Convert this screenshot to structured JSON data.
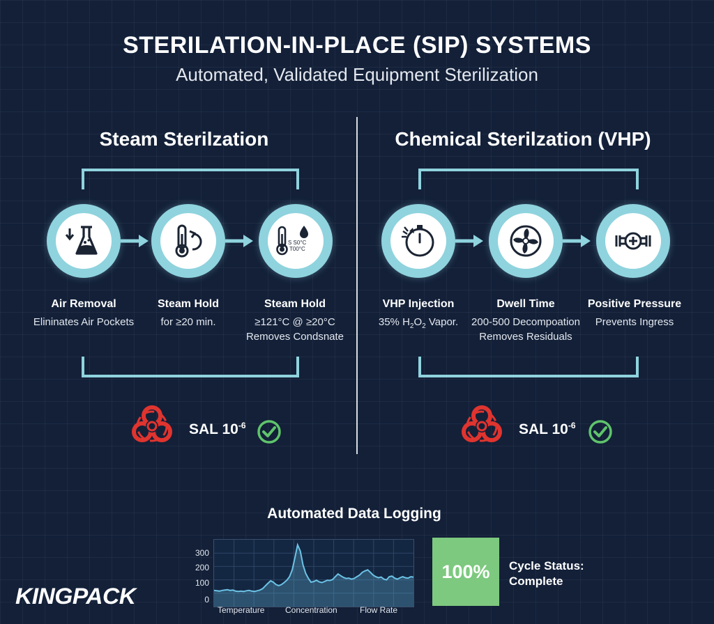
{
  "header": {
    "title": "STERILATION-IN-PLACE (SIP) SYSTEMS",
    "subtitle": "Automated, Validated Equipment Sterilization"
  },
  "steam": {
    "title": "Steam Sterilzation",
    "steps": [
      {
        "label": "Air Removal",
        "desc": [
          "Elininates Air Pockets"
        ],
        "icon": "flask-icon"
      },
      {
        "label": "Steam Hold",
        "desc": [
          "for ≥20 min."
        ],
        "icon": "thermometer-cycle-icon"
      },
      {
        "label": "Steam Hold",
        "desc": [
          "≥121°C @ ≥20°C",
          "Removes Condsnate"
        ],
        "icon": "thermometer-drop-icon",
        "icon_text": [
          "S S0°C",
          "T00°C"
        ]
      }
    ],
    "sal": {
      "label": "SAL 10",
      "exponent": "-6"
    }
  },
  "chemical": {
    "title": "Chemical Sterilzation (VHP)",
    "steps": [
      {
        "label": "VHP Injection",
        "desc_pre": "35% H",
        "desc_sub1": "2",
        "desc_mid": "O",
        "desc_sub2": "2",
        "desc_post": " Vapor.",
        "icon": "timer-icon"
      },
      {
        "label": "Dwell Time",
        "desc": [
          "200-500 Decompoation",
          "Removes Residuals"
        ],
        "icon": "fan-icon"
      },
      {
        "label": "Positive Pressure",
        "desc": [
          "Prevents Ingress"
        ],
        "icon": "valve-icon"
      }
    ],
    "sal": {
      "label": "SAL 10",
      "exponent": "-6"
    }
  },
  "logging": {
    "title": "Automated Data Logging",
    "status_value": "100%",
    "status_label_1": "Cycle Status:",
    "status_label_2": "Complete"
  },
  "chart_data": {
    "type": "area",
    "title": "",
    "y_ticks": [
      "300",
      "200",
      "100",
      "0"
    ],
    "x_labels": [
      "Temperature",
      "Concentration",
      "Flow Rate"
    ],
    "ylim": [
      0,
      350
    ],
    "values": [
      70,
      68,
      66,
      70,
      72,
      74,
      70,
      72,
      66,
      64,
      66,
      64,
      68,
      70,
      66,
      64,
      68,
      72,
      80,
      96,
      112,
      126,
      118,
      104,
      98,
      104,
      116,
      130,
      150,
      190,
      260,
      336,
      300,
      220,
      170,
      140,
      118,
      122,
      130,
      120,
      116,
      122,
      130,
      128,
      134,
      150,
      166,
      156,
      146,
      140,
      142,
      136,
      140,
      150,
      160,
      176,
      184,
      190,
      176,
      160,
      150,
      144,
      148,
      136,
      132,
      150,
      154,
      142,
      136,
      144,
      150,
      144,
      142,
      150,
      148
    ]
  },
  "colors": {
    "background": "#132038",
    "accent": "#8fd3de",
    "status_green": "#7dc97f",
    "biohazard_red": "#e0342f",
    "check_green": "#5fc46b",
    "chart_line": "#6cc3e6"
  },
  "brand": {
    "name": "KINGPACK"
  }
}
